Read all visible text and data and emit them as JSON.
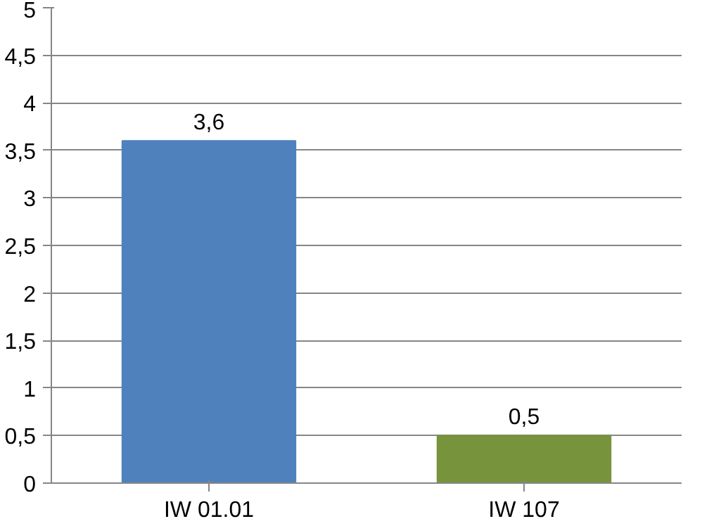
{
  "chart_data": {
    "type": "bar",
    "categories": [
      "IW 01.01",
      "IW 107"
    ],
    "values": [
      3.6,
      0.5
    ],
    "colors": [
      "#4f81bd",
      "#77933c"
    ],
    "value_labels": [
      "3,6",
      "0,5"
    ],
    "ylim": [
      0,
      5
    ],
    "yticks": [
      0,
      {
        "value": 0.5,
        "label": "0,5"
      },
      1,
      {
        "value": 1.5,
        "label": "1,5"
      },
      2,
      {
        "value": 2.5,
        "label": "2,5"
      },
      3,
      {
        "value": 3.5,
        "label": "3,5"
      },
      4,
      {
        "value": 4.5,
        "label": "4,5"
      },
      5
    ],
    "grid": "y"
  }
}
